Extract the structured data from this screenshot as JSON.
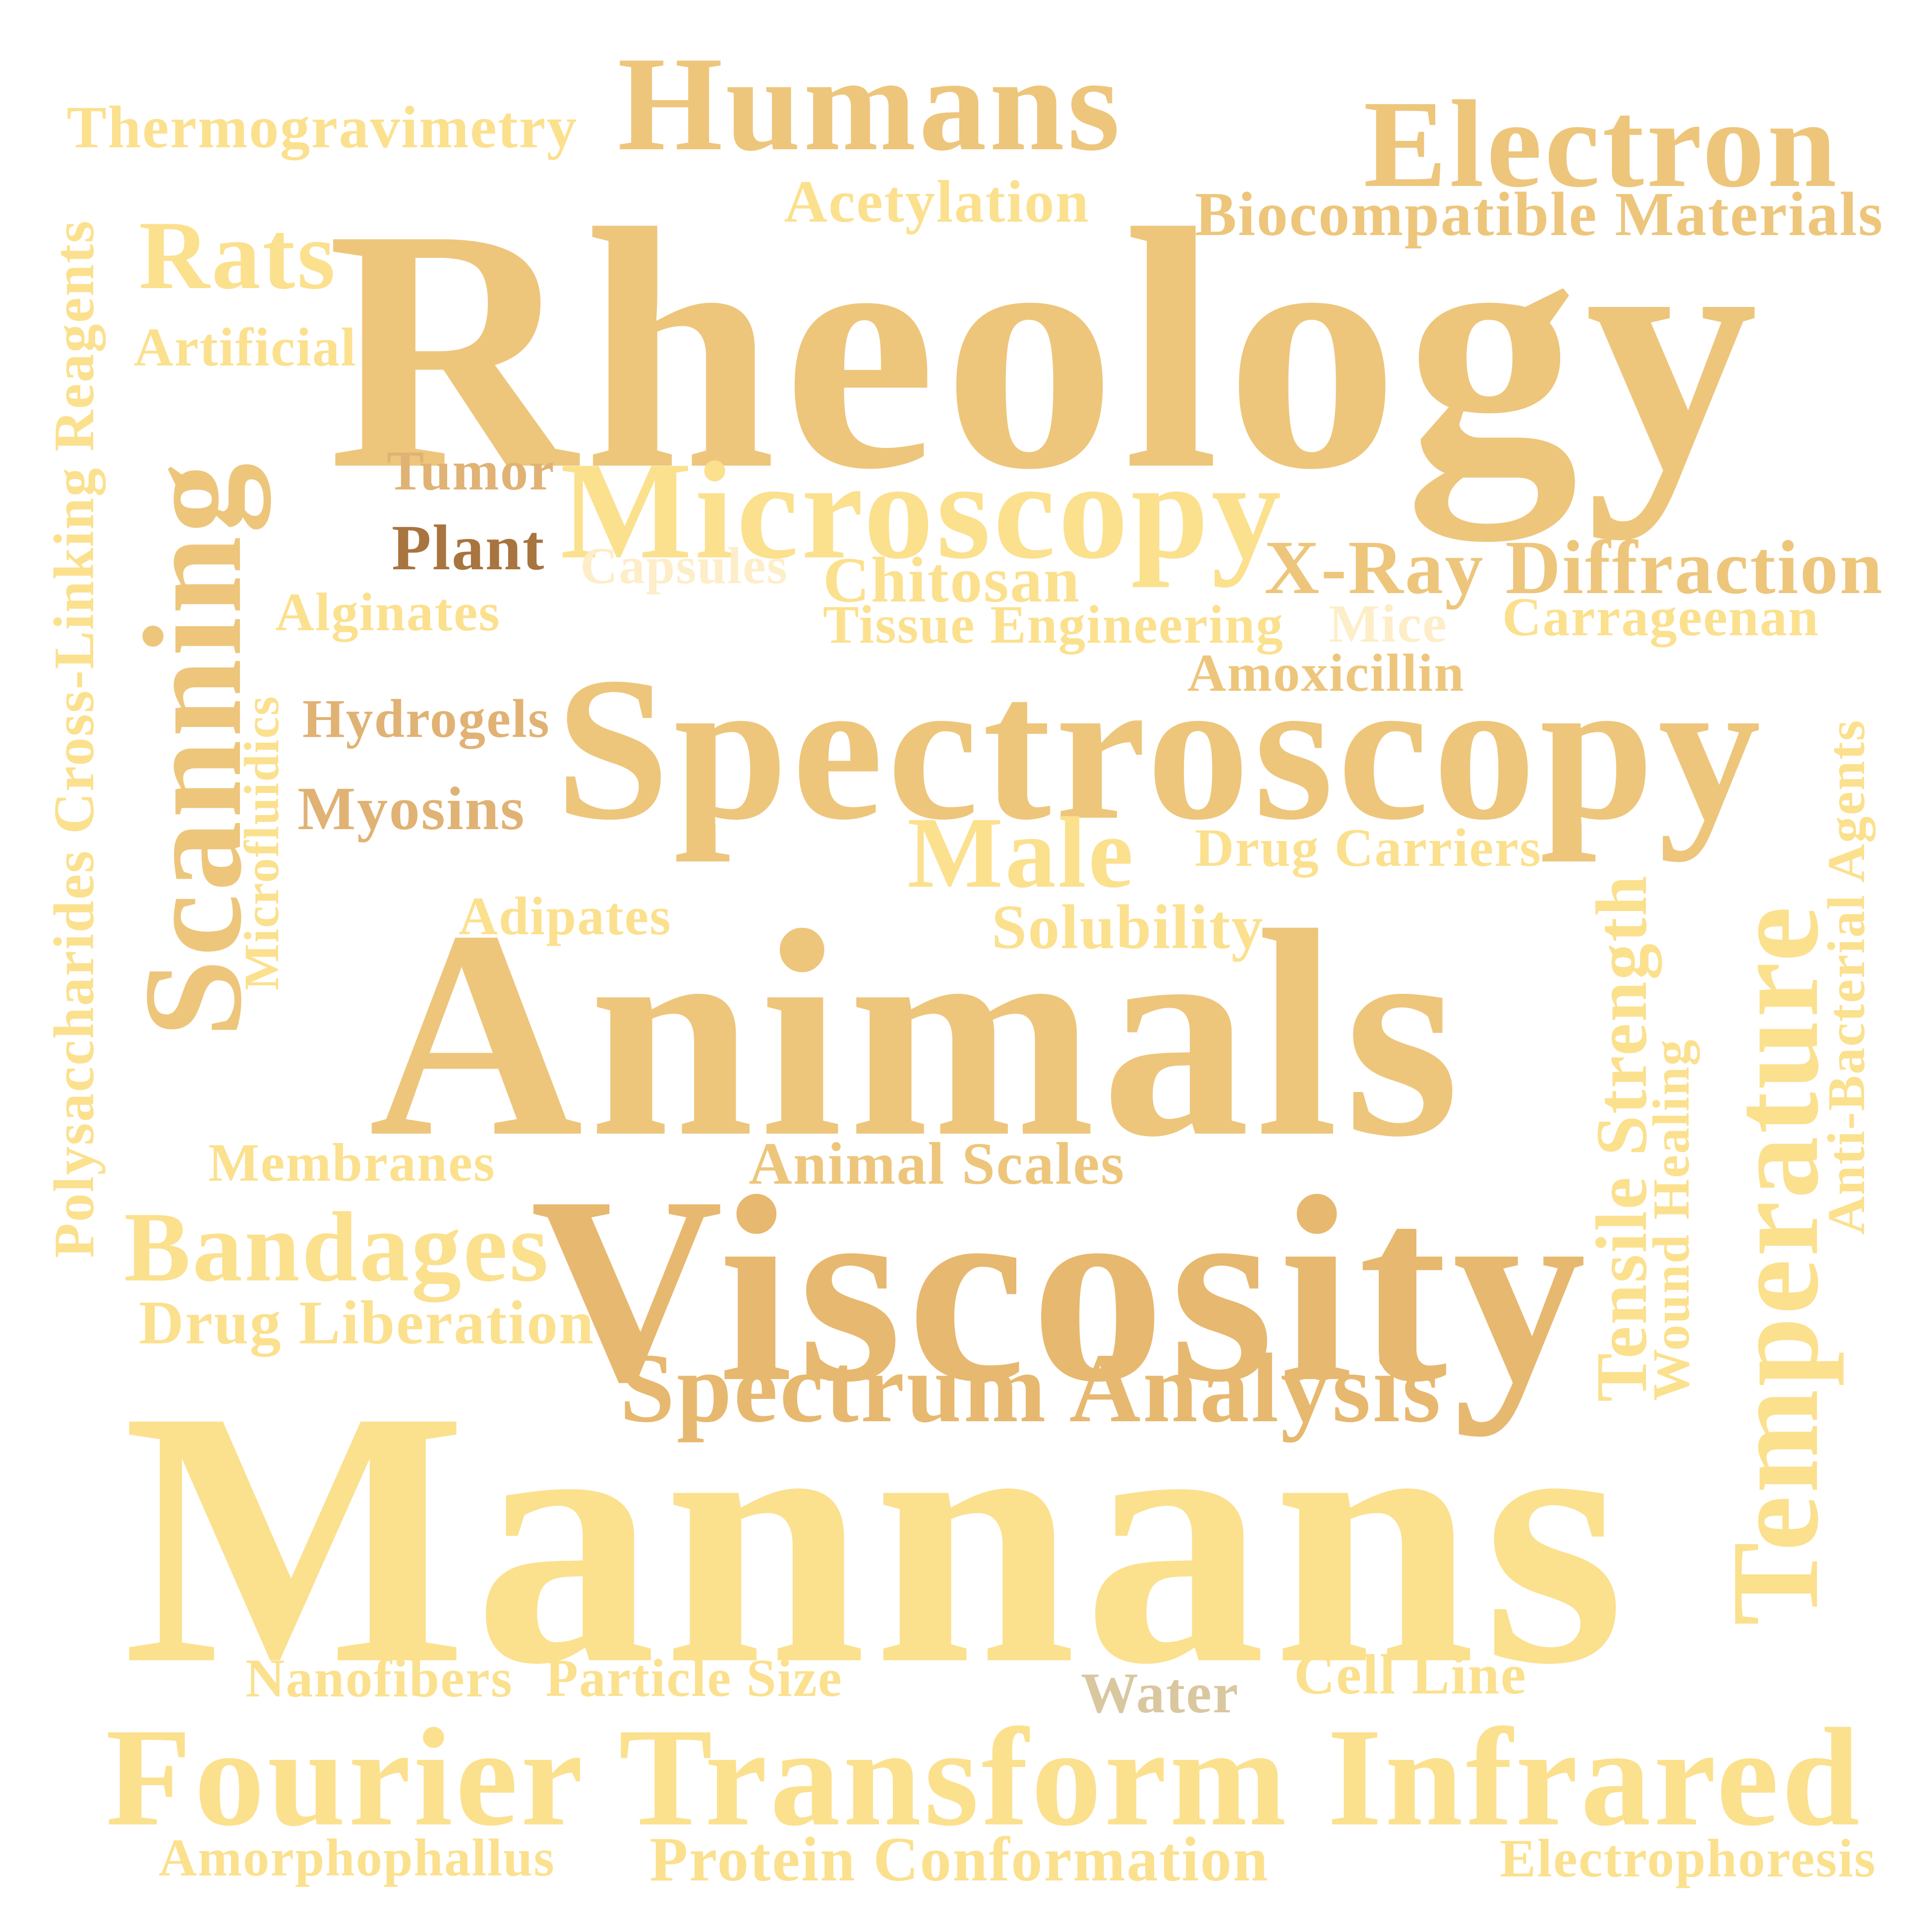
{
  "palette": {
    "light": "#fbe08e",
    "mid": "#edc67c",
    "gold": "#e7b86f",
    "tan": "#e0b274",
    "brown": "#a8743f",
    "pale": "#fdeec9",
    "grey": "#d9c7a0"
  },
  "words": [
    {
      "id": "thermogravimetry",
      "text": "Thermogravimetry",
      "color": "light"
    },
    {
      "id": "humans",
      "text": "Humans",
      "color": "mid"
    },
    {
      "id": "electron",
      "text": "Electron",
      "color": "mid"
    },
    {
      "id": "acetylation",
      "text": "Acetylation",
      "color": "light"
    },
    {
      "id": "biocompatible-materials",
      "text": "Biocompatible Materials",
      "color": "mid"
    },
    {
      "id": "rats",
      "text": "Rats",
      "color": "light"
    },
    {
      "id": "rheology",
      "text": "Rheology",
      "color": "mid"
    },
    {
      "id": "artificial",
      "text": "Artificial",
      "color": "light"
    },
    {
      "id": "polysaccharides-cross-linking-reagents",
      "text": "Polysaccharides Cross-Linking Reagents",
      "color": "light",
      "vertical": true
    },
    {
      "id": "scanning",
      "text": "Scanning",
      "color": "mid",
      "vertical": true
    },
    {
      "id": "tumor",
      "text": "Tumor",
      "color": "tan"
    },
    {
      "id": "microscopy",
      "text": "Microscopy",
      "color": "light"
    },
    {
      "id": "plant",
      "text": "Plant",
      "color": "brown"
    },
    {
      "id": "capsules",
      "text": "Capsules",
      "color": "pale"
    },
    {
      "id": "chitosan",
      "text": "Chitosan",
      "color": "light"
    },
    {
      "id": "x-ray-diffraction",
      "text": "X-Ray Diffraction",
      "color": "mid"
    },
    {
      "id": "alginates",
      "text": "Alginates",
      "color": "light"
    },
    {
      "id": "tissue-engineering",
      "text": "Tissue Engineering",
      "color": "light"
    },
    {
      "id": "mice",
      "text": "Mice",
      "color": "pale"
    },
    {
      "id": "carrageenan",
      "text": "Carrageenan",
      "color": "light"
    },
    {
      "id": "amoxicillin",
      "text": "Amoxicillin",
      "color": "mid"
    },
    {
      "id": "microfluidics",
      "text": "Microfluidics",
      "color": "light",
      "vertical": true
    },
    {
      "id": "hydrogels",
      "text": "Hydrogels",
      "color": "tan"
    },
    {
      "id": "spectroscopy",
      "text": "Spectroscopy",
      "color": "mid"
    },
    {
      "id": "myosins",
      "text": "Myosins",
      "color": "tan"
    },
    {
      "id": "anti-bacterial-agents",
      "text": "Anti-Bacterial Agents",
      "color": "light",
      "vertical": true
    },
    {
      "id": "male",
      "text": "Male",
      "color": "light"
    },
    {
      "id": "drug-carriers",
      "text": "Drug Carriers",
      "color": "light"
    },
    {
      "id": "temperature",
      "text": "Temperature",
      "color": "light",
      "vertical": true
    },
    {
      "id": "adipates",
      "text": "Adipates",
      "color": "light"
    },
    {
      "id": "solubility",
      "text": "Solubility",
      "color": "light"
    },
    {
      "id": "tensile-strength",
      "text": "Tensile Strength",
      "color": "light",
      "vertical": true
    },
    {
      "id": "animals",
      "text": "Animals",
      "color": "mid"
    },
    {
      "id": "wound-healing",
      "text": "Wound Healing",
      "color": "light",
      "vertical": true
    },
    {
      "id": "membranes",
      "text": "Membranes",
      "color": "light"
    },
    {
      "id": "animal-scales",
      "text": "Animal Scales",
      "color": "mid"
    },
    {
      "id": "bandages",
      "text": "Bandages",
      "color": "light"
    },
    {
      "id": "viscosity",
      "text": "Viscosity",
      "color": "gold"
    },
    {
      "id": "drug-liberation",
      "text": "Drug Liberation",
      "color": "light"
    },
    {
      "id": "spectrum-analysis",
      "text": "Spectrum Analysis",
      "color": "gold"
    },
    {
      "id": "mannans",
      "text": "Mannans",
      "color": "light"
    },
    {
      "id": "nanofibers",
      "text": "Nanofibers",
      "color": "light"
    },
    {
      "id": "particle-size",
      "text": "Particle Size",
      "color": "light"
    },
    {
      "id": "water",
      "text": "Water",
      "color": "grey"
    },
    {
      "id": "cell-line",
      "text": "Cell Line",
      "color": "light"
    },
    {
      "id": "fourier-transform-infrared",
      "text": "Fourier Transform Infrared",
      "color": "light"
    },
    {
      "id": "amorphophallus",
      "text": "Amorphophallus",
      "color": "light"
    },
    {
      "id": "protein-conformation",
      "text": "Protein Conformation",
      "color": "light"
    },
    {
      "id": "electrophoresis",
      "text": "Electrophoresis",
      "color": "light"
    }
  ]
}
